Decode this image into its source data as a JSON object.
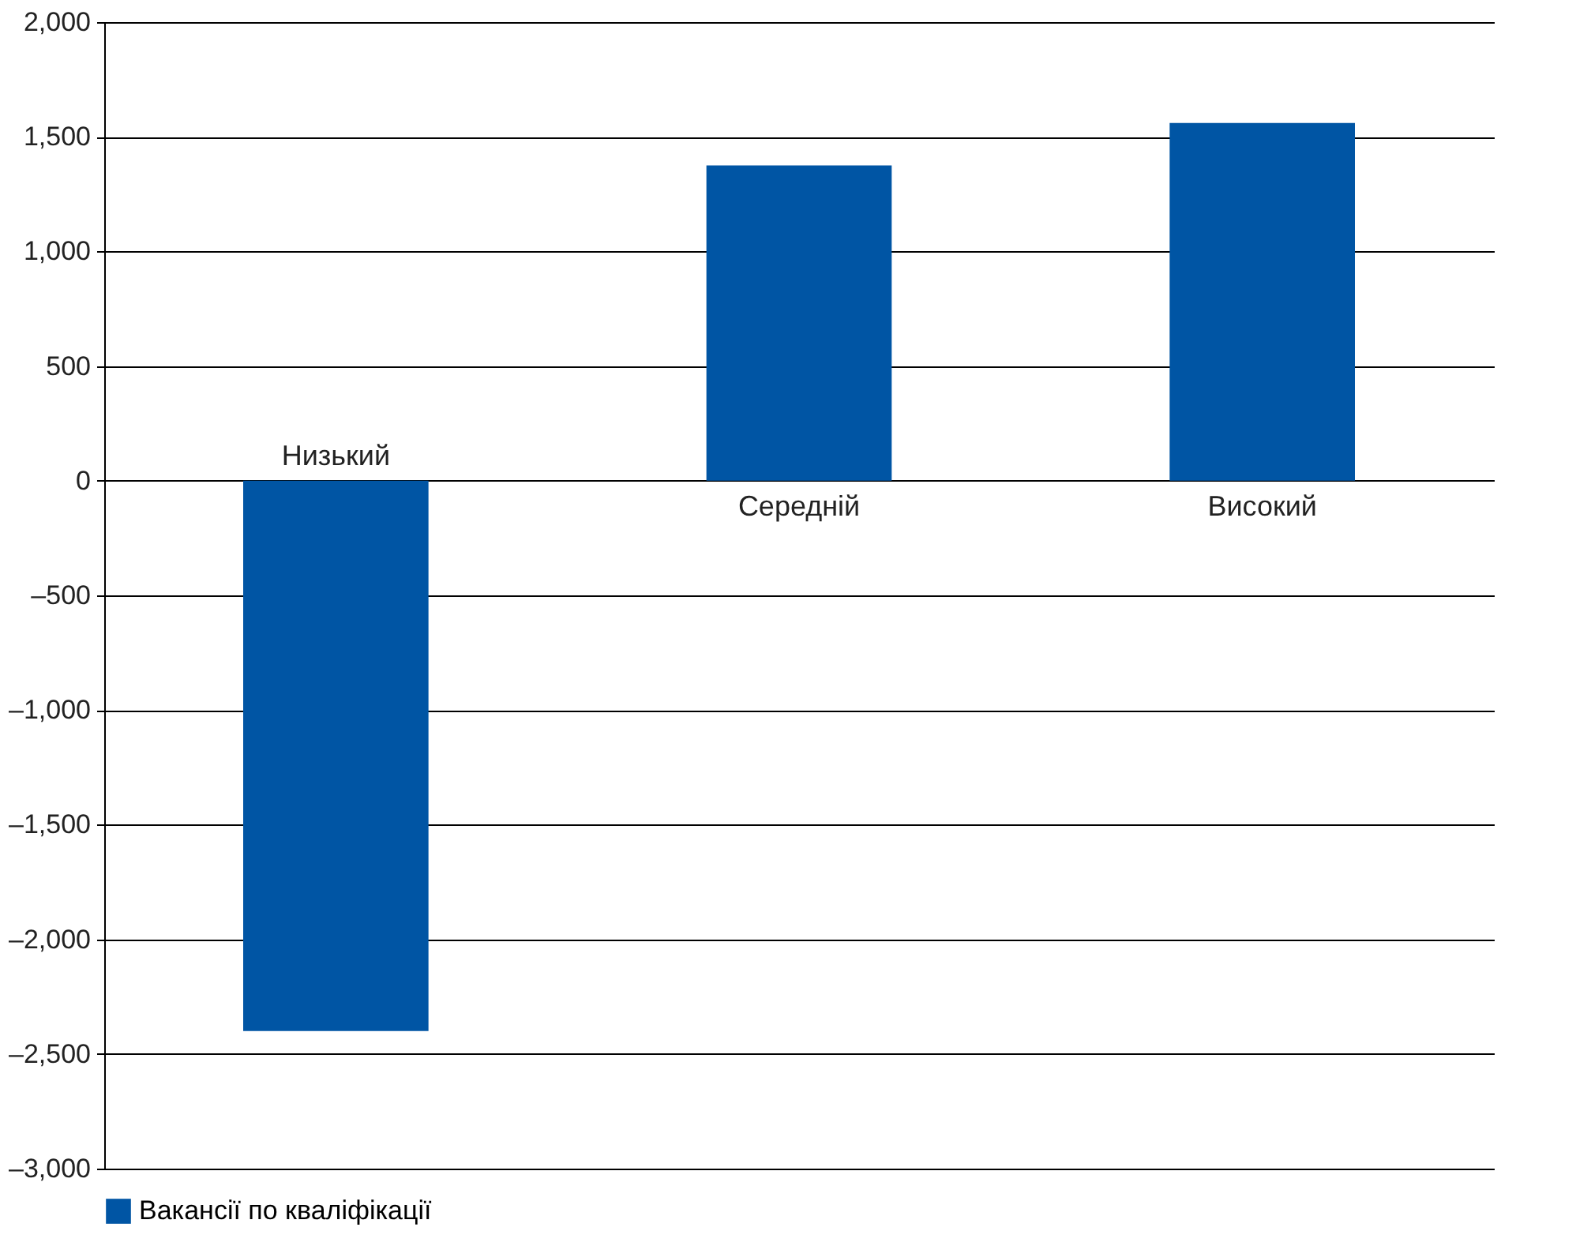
{
  "chart_data": {
    "type": "bar",
    "categories": [
      "Низький",
      "Середній",
      "Високий"
    ],
    "series": [
      {
        "name": "Вакансії по кваліфікації",
        "color": "#0055a4",
        "values": [
          -2400,
          1375,
          1560
        ]
      }
    ],
    "ylim": [
      -3000,
      2000
    ],
    "yticks": [
      {
        "value": -3000,
        "label": "–3,000"
      },
      {
        "value": -2500,
        "label": "–2,500"
      },
      {
        "value": -2000,
        "label": "–2,000"
      },
      {
        "value": -1500,
        "label": "–1,500"
      },
      {
        "value": -1000,
        "label": "–1,000"
      },
      {
        "value": -500,
        "label": "–500"
      },
      0,
      500,
      {
        "value": 1000,
        "label": "1,000"
      },
      {
        "value": 1500,
        "label": "1,500"
      },
      {
        "value": 2000,
        "label": "2,000"
      }
    ],
    "grid": "y",
    "legend": "bottom"
  }
}
